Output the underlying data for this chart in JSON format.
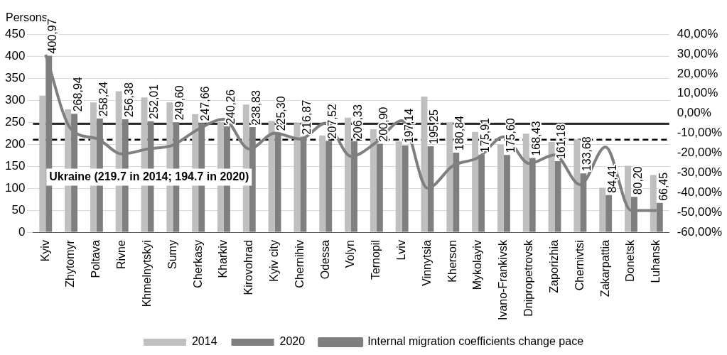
{
  "chart_data": {
    "type": "bar",
    "ylabel": "Persons",
    "categories": [
      "Kyiv",
      "Zhytomyr",
      "Poltava",
      "Rivne",
      "Khmelnytskyi",
      "Sumy",
      "Cherkasy",
      "Kharkiv",
      "Kirovohrad",
      "Kyiv city",
      "Chernihiv",
      "Odessa",
      "Volyn",
      "Ternopil",
      "Lviv",
      "Vinnytsia",
      "Kherson",
      "Mykolayiv",
      "Ivano-Frankivsk",
      "Dnipropetrovsk",
      "Zaporizhia",
      "Chernivtsi",
      "Zakarpattia",
      "Donetsk",
      "Luhansk"
    ],
    "series": [
      {
        "name": "2014",
        "color": "#bfbfbf",
        "values": [
          310,
          279,
          295,
          320,
          306,
          295,
          268,
          250,
          290,
          253,
          248,
          220,
          260,
          234,
          206,
          308,
          250,
          228,
          199,
          224,
          205,
          211,
          101,
          151,
          130
        ]
      },
      {
        "name": "2020",
        "color": "#7f7f7f",
        "values": [
          400.97,
          268.94,
          258.24,
          256.38,
          252.01,
          249.6,
          247.66,
          240.26,
          238.83,
          225.3,
          216.87,
          207.52,
          206.33,
          200.9,
          197.14,
          195.25,
          180.84,
          175.91,
          175.6,
          168.43,
          161.18,
          133.68,
          84.41,
          80.2,
          66.45
        ],
        "value_labels": [
          "400,97",
          "268,94",
          "258,24",
          "256,38",
          "252,01",
          "249,60",
          "247,66",
          "240,26",
          "238,83",
          "225,30",
          "216,87",
          "207,52",
          "206,33",
          "200,90",
          "197,14",
          "195,25",
          "180,84",
          "175,91",
          "175,60",
          "168,43",
          "161,18",
          "133,68",
          "84,41",
          "80,20",
          "66,45"
        ]
      },
      {
        "name": "Internal migration coefficients change pace",
        "type": "line",
        "axis": "y2",
        "color": "#7f7f7f",
        "values": [
          29.6,
          -8,
          -12.7,
          -20.5,
          -18,
          -16,
          -8,
          -3,
          -18,
          -10,
          -13,
          -5,
          -21.7,
          -14.5,
          -3.7,
          -37.8,
          -26.5,
          -22.3,
          -11.9,
          -25.3,
          -21,
          -36,
          -17,
          -49,
          -49
        ]
      }
    ],
    "ylim": [
      0,
      450
    ],
    "yticks": [
      0,
      50,
      100,
      150,
      200,
      250,
      300,
      350,
      400,
      450
    ],
    "y2lim": [
      -60,
      40
    ],
    "y2ticks": [
      {
        "value": -60,
        "label": "-60,00%"
      },
      {
        "value": -50,
        "label": "-50,00%"
      },
      {
        "value": -40,
        "label": "-40,00%"
      },
      {
        "value": -30,
        "label": "-30,00%"
      },
      {
        "value": -20,
        "label": "-20,00%"
      },
      {
        "value": -10,
        "label": "-10,00%"
      },
      {
        "value": 0,
        "label": "0,00%"
      },
      {
        "value": 10,
        "label": "10,00%"
      },
      {
        "value": 20,
        "label": "20,00%"
      },
      {
        "value": 30,
        "label": "30,00%"
      },
      {
        "value": 40,
        "label": "40,00%"
      }
    ],
    "ref_lines": [
      {
        "axis": "y",
        "value": 246,
        "color": "#000000",
        "line_style": "solid"
      },
      {
        "axis": "y",
        "value": 210,
        "color": "#000000",
        "line_style": "dashed"
      }
    ],
    "annotations": [
      "Ukraine (219.7 in 2014; 194.7 in 2020)"
    ],
    "grid": "y",
    "legend": "bottom",
    "marker": "none",
    "line_style": "solid"
  }
}
